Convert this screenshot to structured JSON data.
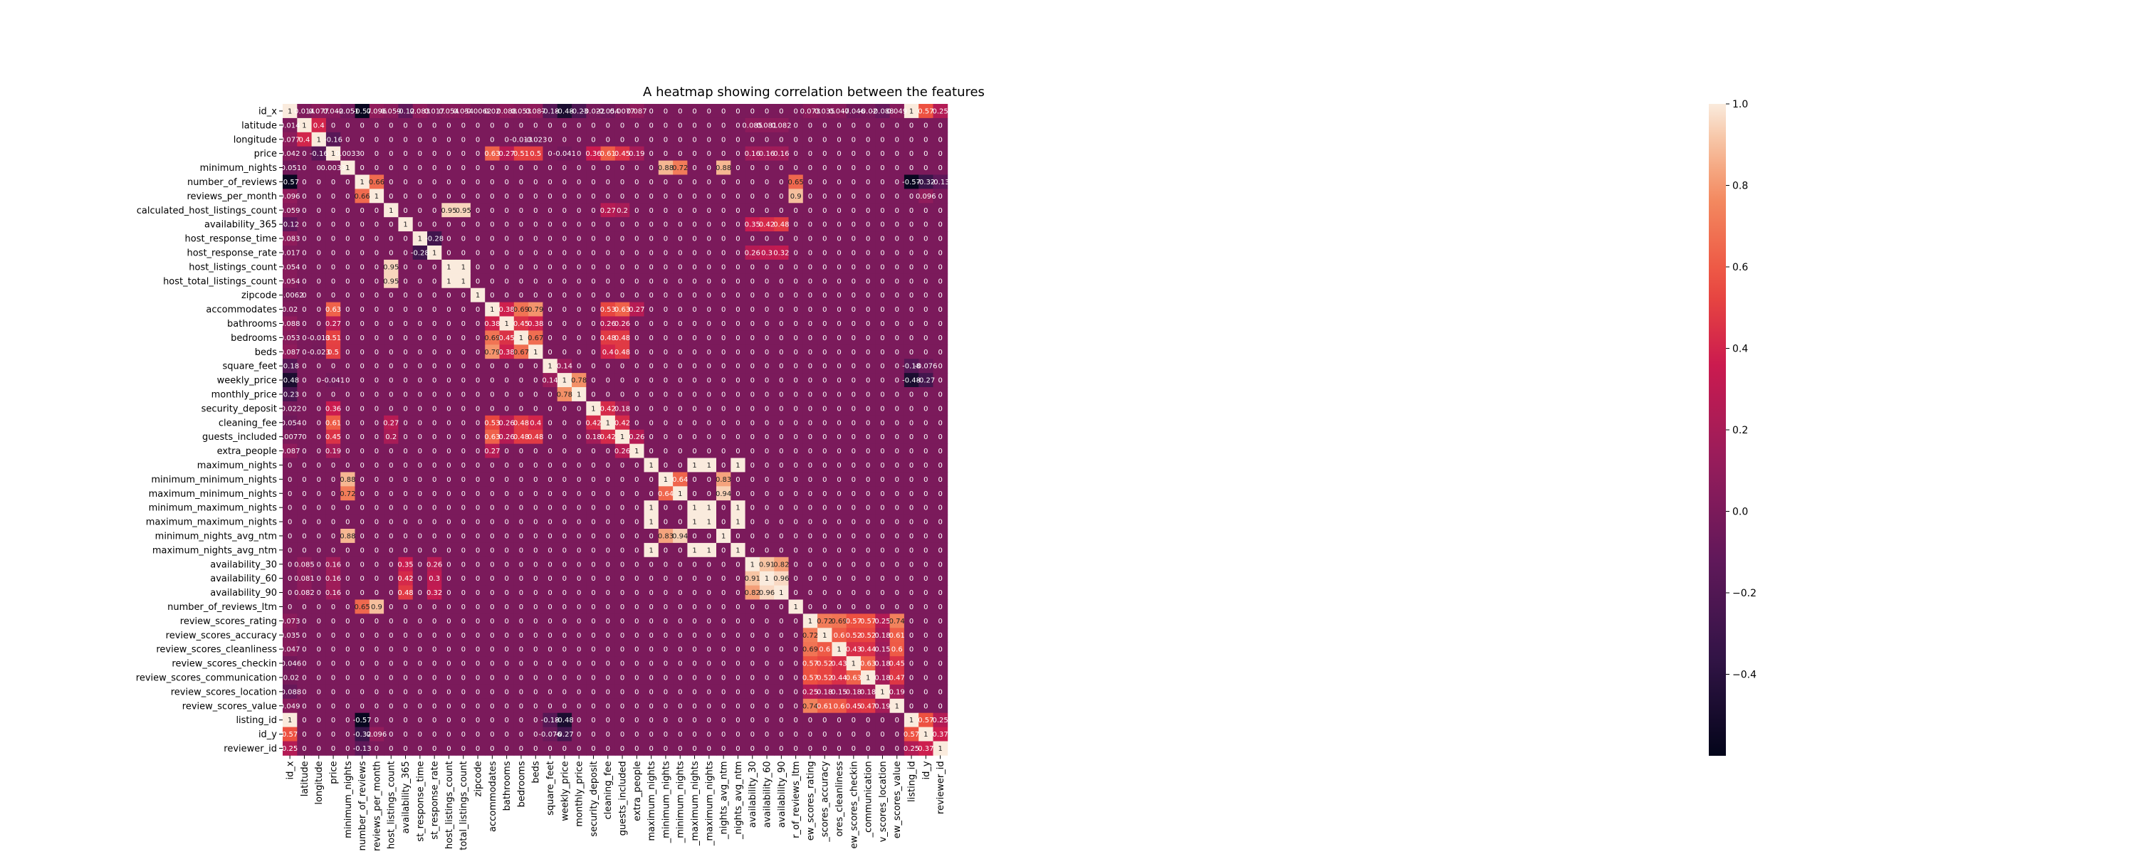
{
  "chart_data": {
    "type": "heatmap",
    "title": "A heatmap showing correlation between the features",
    "labels": [
      "id_x",
      "latitude",
      "longitude",
      "price",
      "minimum_nights",
      "number_of_reviews",
      "reviews_per_month",
      "calculated_host_listings_count",
      "availability_365",
      "host_response_time",
      "host_response_rate",
      "host_listings_count",
      "host_total_listings_count",
      "zipcode",
      "accommodates",
      "bathrooms",
      "bedrooms",
      "beds",
      "square_feet",
      "weekly_price",
      "monthly_price",
      "security_deposit",
      "cleaning_fee",
      "guests_included",
      "extra_people",
      "maximum_nights",
      "minimum_minimum_nights",
      "maximum_minimum_nights",
      "minimum_maximum_nights",
      "maximum_maximum_nights",
      "minimum_nights_avg_ntm",
      "maximum_nights_avg_ntm",
      "availability_30",
      "availability_60",
      "availability_90",
      "number_of_reviews_ltm",
      "review_scores_rating",
      "review_scores_accuracy",
      "review_scores_cleanliness",
      "review_scores_checkin",
      "review_scores_communication",
      "review_scores_location",
      "review_scores_value",
      "listing_id",
      "id_y",
      "reviewer_id"
    ],
    "x_tick_labels": [
      "id_x",
      "latitude",
      "longitude",
      "price",
      "minimum_nights",
      "number_of_reviews",
      "reviews_per_month",
      "host_listings_count",
      "availability_365",
      "st_response_time",
      "st_response_rate",
      "host_listings_count",
      "total_listings_count",
      "zipcode",
      "accommodates",
      "bathrooms",
      "bedrooms",
      "beds",
      "square_feet",
      "weekly_price",
      "monthly_price",
      "security_deposit",
      "cleaning_fee",
      "guests_included",
      "extra_people",
      "maximum_nights",
      "_minimum_nights",
      "_minimum_nights",
      "_maximum_nights",
      "_maximum_nights",
      "_nights_avg_ntm",
      "_nights_avg_ntm",
      "availability_30",
      "availability_60",
      "availability_90",
      "r_of_reviews_ltm",
      "ew_scores_rating",
      "_scores_accuracy",
      "ores_cleanliness",
      "ew_scores_checkin",
      "_communication",
      "v_scores_location",
      "ew_scores_value",
      "listing_id",
      "id_y",
      "reviewer_id"
    ],
    "colorbar": {
      "min": -0.6,
      "max": 1.0,
      "ticks": [
        1.0,
        0.8,
        0.6,
        0.4,
        0.2,
        0.0,
        -0.2,
        -0.4
      ]
    },
    "pairs": [
      [
        "id_x",
        "latitude",
        0.014
      ],
      [
        "id_x",
        "longitude",
        0.077
      ],
      [
        "id_x",
        "price",
        0.042
      ],
      [
        "id_x",
        "minimum_nights",
        -0.051
      ],
      [
        "id_x",
        "number_of_reviews",
        -0.57
      ],
      [
        "id_x",
        "reviews_per_month",
        0.096
      ],
      [
        "id_x",
        "calculated_host_listings_count",
        0.059
      ],
      [
        "id_x",
        "availability_365",
        -0.12
      ],
      [
        "id_x",
        "host_response_time",
        0.083
      ],
      [
        "id_x",
        "host_response_rate",
        0.017
      ],
      [
        "id_x",
        "host_listings_count",
        0.054
      ],
      [
        "id_x",
        "host_total_listings_count",
        0.054
      ],
      [
        "id_x",
        "zipcode",
        -0.0062
      ],
      [
        "id_x",
        "accommodates",
        0.02
      ],
      [
        "id_x",
        "bathrooms",
        0.088
      ],
      [
        "id_x",
        "bedrooms",
        0.053
      ],
      [
        "id_x",
        "beds",
        0.087
      ],
      [
        "id_x",
        "square_feet",
        -0.18
      ],
      [
        "id_x",
        "weekly_price",
        -0.48
      ],
      [
        "id_x",
        "monthly_price",
        -0.23
      ],
      [
        "id_x",
        "security_deposit",
        -0.022
      ],
      [
        "id_x",
        "cleaning_fee",
        -0.054
      ],
      [
        "id_x",
        "guests_included",
        0.0077
      ],
      [
        "id_x",
        "extra_people",
        0.087
      ],
      [
        "id_x",
        "review_scores_rating",
        0.073
      ],
      [
        "id_x",
        "review_scores_accuracy",
        0.035
      ],
      [
        "id_x",
        "review_scores_cleanliness",
        0.047
      ],
      [
        "id_x",
        "review_scores_checkin",
        -0.046
      ],
      [
        "id_x",
        "review_scores_communication",
        -0.02
      ],
      [
        "id_x",
        "review_scores_location",
        -0.088
      ],
      [
        "id_x",
        "review_scores_value",
        0.049
      ],
      [
        "id_x",
        "listing_id",
        1
      ],
      [
        "id_x",
        "id_y",
        0.57
      ],
      [
        "id_x",
        "reviewer_id",
        0.25
      ],
      [
        "latitude",
        "longitude",
        0.4
      ],
      [
        "latitude",
        "availability_30",
        0.085
      ],
      [
        "latitude",
        "availability_60",
        0.081
      ],
      [
        "latitude",
        "availability_90",
        0.082
      ],
      [
        "longitude",
        "price",
        -0.16
      ],
      [
        "longitude",
        "bedrooms",
        -0.013
      ],
      [
        "longitude",
        "beds",
        -0.023
      ],
      [
        "price",
        "minimum_nights",
        0.0033
      ],
      [
        "price",
        "accommodates",
        0.63
      ],
      [
        "price",
        "bathrooms",
        0.27
      ],
      [
        "price",
        "bedrooms",
        0.51
      ],
      [
        "price",
        "beds",
        0.5
      ],
      [
        "price",
        "weekly_price",
        -0.041
      ],
      [
        "price",
        "security_deposit",
        0.36
      ],
      [
        "price",
        "cleaning_fee",
        0.61
      ],
      [
        "price",
        "guests_included",
        0.45
      ],
      [
        "price",
        "extra_people",
        0.19
      ],
      [
        "price",
        "availability_30",
        0.16
      ],
      [
        "price",
        "availability_60",
        0.16
      ],
      [
        "price",
        "availability_90",
        0.16
      ],
      [
        "minimum_nights",
        "minimum_minimum_nights",
        0.88
      ],
      [
        "minimum_nights",
        "maximum_minimum_nights",
        0.72
      ],
      [
        "minimum_nights",
        "minimum_nights_avg_ntm",
        0.88
      ],
      [
        "number_of_reviews",
        "reviews_per_month",
        0.66
      ],
      [
        "number_of_reviews",
        "number_of_reviews_ltm",
        0.65
      ],
      [
        "number_of_reviews",
        "listing_id",
        -0.57
      ],
      [
        "number_of_reviews",
        "id_y",
        -0.32
      ],
      [
        "number_of_reviews",
        "reviewer_id",
        -0.13
      ],
      [
        "reviews_per_month",
        "number_of_reviews_ltm",
        0.9
      ],
      [
        "reviews_per_month",
        "id_y",
        0.096
      ],
      [
        "calculated_host_listings_count",
        "host_listings_count",
        0.95
      ],
      [
        "calculated_host_listings_count",
        "host_total_listings_count",
        0.95
      ],
      [
        "calculated_host_listings_count",
        "cleaning_fee",
        0.27
      ],
      [
        "calculated_host_listings_count",
        "guests_included",
        0.2
      ],
      [
        "availability_365",
        "availability_30",
        0.35
      ],
      [
        "availability_365",
        "availability_60",
        0.42
      ],
      [
        "availability_365",
        "availability_90",
        0.48
      ],
      [
        "host_response_time",
        "host_response_rate",
        -0.28
      ],
      [
        "host_response_rate",
        "availability_30",
        0.26
      ],
      [
        "host_response_rate",
        "availability_60",
        0.3
      ],
      [
        "host_response_rate",
        "availability_90",
        0.32
      ],
      [
        "host_listings_count",
        "host_total_listings_count",
        1
      ],
      [
        "accommodates",
        "bathrooms",
        0.38
      ],
      [
        "accommodates",
        "bedrooms",
        0.69
      ],
      [
        "accommodates",
        "beds",
        0.79
      ],
      [
        "accommodates",
        "cleaning_fee",
        0.53
      ],
      [
        "accommodates",
        "guests_included",
        0.63
      ],
      [
        "accommodates",
        "extra_people",
        0.27
      ],
      [
        "bathrooms",
        "bedrooms",
        0.45
      ],
      [
        "bathrooms",
        "beds",
        0.38
      ],
      [
        "bathrooms",
        "cleaning_fee",
        0.26
      ],
      [
        "bathrooms",
        "guests_included",
        0.26
      ],
      [
        "bedrooms",
        "beds",
        0.67
      ],
      [
        "bedrooms",
        "cleaning_fee",
        0.48
      ],
      [
        "bedrooms",
        "guests_included",
        0.48
      ],
      [
        "beds",
        "cleaning_fee",
        0.4
      ],
      [
        "beds",
        "guests_included",
        0.48
      ],
      [
        "square_feet",
        "weekly_price",
        0.14
      ],
      [
        "square_feet",
        "listing_id",
        -0.18
      ],
      [
        "square_feet",
        "id_y",
        -0.076
      ],
      [
        "weekly_price",
        "monthly_price",
        0.78
      ],
      [
        "weekly_price",
        "listing_id",
        -0.48
      ],
      [
        "weekly_price",
        "id_y",
        -0.27
      ],
      [
        "security_deposit",
        "cleaning_fee",
        0.42
      ],
      [
        "security_deposit",
        "guests_included",
        0.18
      ],
      [
        "cleaning_fee",
        "guests_included",
        0.42
      ],
      [
        "guests_included",
        "extra_people",
        0.26
      ],
      [
        "maximum_nights",
        "minimum_maximum_nights",
        1
      ],
      [
        "maximum_nights",
        "maximum_maximum_nights",
        1
      ],
      [
        "maximum_nights",
        "maximum_nights_avg_ntm",
        1
      ],
      [
        "minimum_minimum_nights",
        "maximum_minimum_nights",
        0.64
      ],
      [
        "minimum_minimum_nights",
        "minimum_nights_avg_ntm",
        0.83
      ],
      [
        "maximum_minimum_nights",
        "minimum_nights_avg_ntm",
        0.94
      ],
      [
        "minimum_maximum_nights",
        "maximum_maximum_nights",
        1
      ],
      [
        "minimum_maximum_nights",
        "maximum_nights_avg_ntm",
        1
      ],
      [
        "maximum_maximum_nights",
        "maximum_nights_avg_ntm",
        1
      ],
      [
        "availability_30",
        "availability_60",
        0.91
      ],
      [
        "availability_30",
        "availability_90",
        0.82
      ],
      [
        "availability_60",
        "availability_90",
        0.96
      ],
      [
        "review_scores_rating",
        "review_scores_accuracy",
        0.72
      ],
      [
        "review_scores_rating",
        "review_scores_cleanliness",
        0.69
      ],
      [
        "review_scores_rating",
        "review_scores_checkin",
        0.57
      ],
      [
        "review_scores_rating",
        "review_scores_communication",
        0.57
      ],
      [
        "review_scores_rating",
        "review_scores_location",
        0.25
      ],
      [
        "review_scores_rating",
        "review_scores_value",
        0.74
      ],
      [
        "review_scores_accuracy",
        "review_scores_cleanliness",
        0.6
      ],
      [
        "review_scores_accuracy",
        "review_scores_checkin",
        0.52
      ],
      [
        "review_scores_accuracy",
        "review_scores_communication",
        0.52
      ],
      [
        "review_scores_accuracy",
        "review_scores_location",
        0.18
      ],
      [
        "review_scores_accuracy",
        "review_scores_value",
        0.61
      ],
      [
        "review_scores_cleanliness",
        "review_scores_checkin",
        0.43
      ],
      [
        "review_scores_cleanliness",
        "review_scores_communication",
        0.44
      ],
      [
        "review_scores_cleanliness",
        "review_scores_location",
        0.15
      ],
      [
        "review_scores_cleanliness",
        "review_scores_value",
        0.6
      ],
      [
        "review_scores_checkin",
        "review_scores_communication",
        0.63
      ],
      [
        "review_scores_checkin",
        "review_scores_location",
        0.18
      ],
      [
        "review_scores_checkin",
        "review_scores_value",
        0.45
      ],
      [
        "review_scores_communication",
        "review_scores_location",
        0.18
      ],
      [
        "review_scores_communication",
        "review_scores_value",
        0.47
      ],
      [
        "review_scores_location",
        "review_scores_value",
        0.19
      ],
      [
        "listing_id",
        "id_y",
        0.57
      ],
      [
        "listing_id",
        "reviewer_id",
        0.25
      ],
      [
        "id_y",
        "reviewer_id",
        0.37
      ]
    ]
  }
}
